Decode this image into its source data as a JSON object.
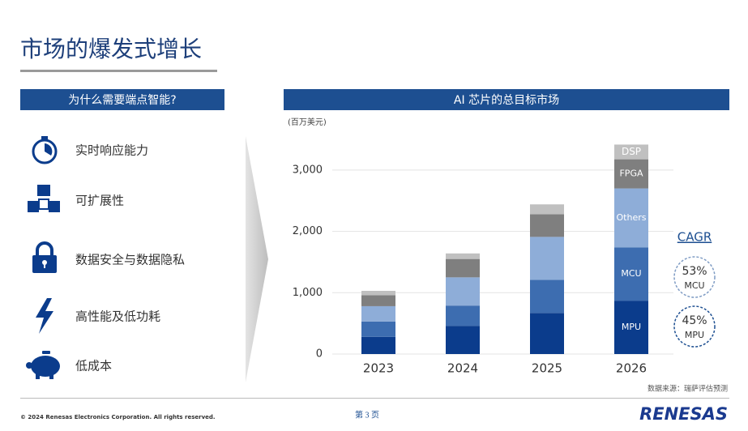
{
  "slide": {
    "title": "市场的爆发式增长",
    "left_header": "为什么需要端点智能?",
    "items": [
      "实时响应能力",
      "可扩展性",
      "数据安全与数据隐私",
      "高性能及低功耗",
      "低成本"
    ],
    "cagr": {
      "label": "CAGR",
      "entries": [
        {
          "value": "53%",
          "name": "MCU"
        },
        {
          "value": "45%",
          "name": "MPU"
        }
      ]
    },
    "source": "数据来源：瑞萨评估预测",
    "footer": "© 2024 Renesas Electronics Corporation. All rights reserved.",
    "page": "第 3 页",
    "logo": "RENESAS"
  },
  "chart_data": {
    "type": "stacked_bar",
    "title": "AI 芯片的总目标市场",
    "unit": "(百万美元)",
    "categories": [
      "2023",
      "2024",
      "2025",
      "2026"
    ],
    "series": [
      {
        "name": "MPU",
        "color": "#0b3c8c",
        "values": [
          280,
          460,
          670,
          870
        ]
      },
      {
        "name": "MCU",
        "color": "#3d6db0",
        "values": [
          250,
          330,
          540,
          870
        ]
      },
      {
        "name": "Others",
        "color": "#8eadd8",
        "values": [
          250,
          460,
          700,
          960
        ]
      },
      {
        "name": "FPGA",
        "color": "#7f7f7f",
        "values": [
          180,
          300,
          370,
          475
        ]
      },
      {
        "name": "DSP",
        "color": "#c0c0c0",
        "values": [
          70,
          90,
          160,
          240
        ]
      }
    ],
    "ylim": [
      0,
      3500
    ],
    "yticks": [
      0,
      {
        "value": 1000,
        "label": "1,000"
      },
      {
        "value": 2000,
        "label": "2,000"
      },
      {
        "value": 3000,
        "label": "3,000"
      }
    ],
    "grid": true
  }
}
